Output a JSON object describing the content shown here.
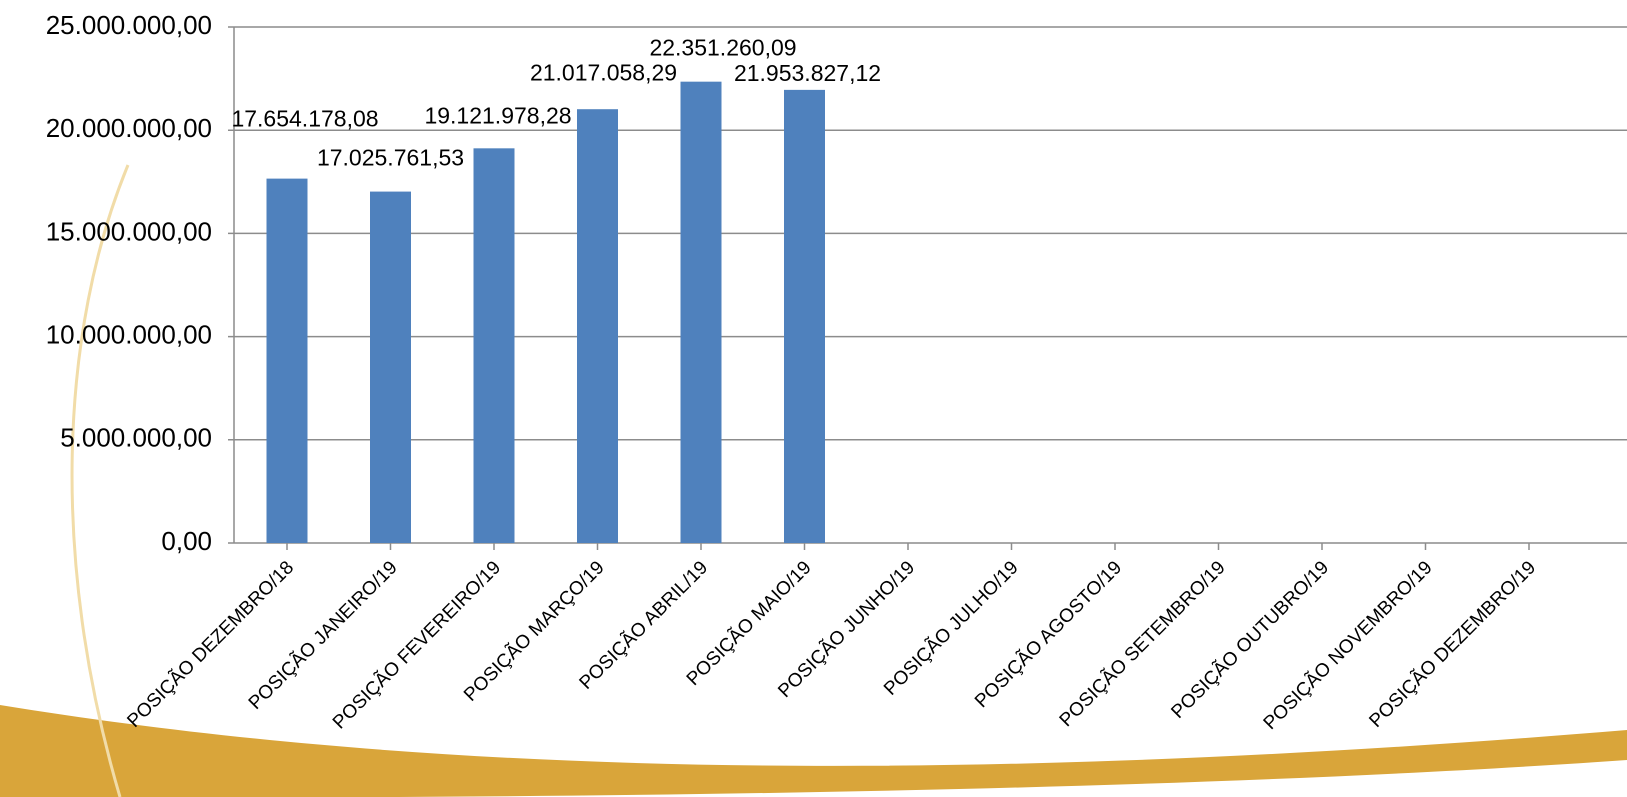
{
  "chart_data": {
    "type": "bar",
    "categories": [
      "POSIÇÃO DEZEMBRO/18",
      "POSIÇÃO JANEIRO/19",
      "POSIÇÃO FEVEREIRO/19",
      "POSIÇÃO MARÇO/19",
      "POSIÇÃO ABRIL/19",
      "POSIÇÃO MAIO/19",
      "POSIÇÃO JUNHO/19",
      "POSIÇÃO JULHO/19",
      "POSIÇÃO AGOSTO/19",
      "POSIÇÃO SETEMBRO/19",
      "POSIÇÃO OUTUBRO/19",
      "POSIÇÃO NOVEMBRO/19",
      "POSIÇÃO DEZEMBRO/19"
    ],
    "values": [
      17654178.08,
      17025761.53,
      19121978.28,
      21017058.29,
      22351260.09,
      21953827.12,
      null,
      null,
      null,
      null,
      null,
      null,
      null
    ],
    "value_labels": [
      "17.654.178,08",
      "17.025.761,53",
      "19.121.978,28",
      "21.017.058,29",
      "22.351.260,09",
      "21.953.827,12",
      null,
      null,
      null,
      null,
      null,
      null,
      null
    ],
    "color": "#4f81bd",
    "ylim": [
      0,
      25000000
    ],
    "yticks": [
      {
        "value": 0,
        "label": "0,00"
      },
      {
        "value": 5000000,
        "label": "5.000.000,00"
      },
      {
        "value": 10000000,
        "label": "10.000.000,00"
      },
      {
        "value": 15000000,
        "label": "15.000.000,00"
      },
      {
        "value": 20000000,
        "label": "20.000.000,00"
      },
      {
        "value": 25000000,
        "label": "25.000.000,00"
      }
    ],
    "grid": true
  }
}
